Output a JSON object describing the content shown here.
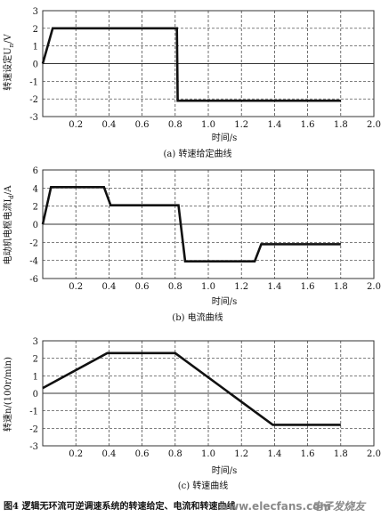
{
  "charts": [
    {
      "caption": "(a) 转速给定曲线",
      "xlabel": "时间/s",
      "ylabel": "转速设定U",
      "ylabel_sub": "n",
      "ylabel_unit": "/V",
      "x_ticks": [
        "0.2",
        "0.4",
        "0.6",
        "0.8",
        "1.0",
        "1.2",
        "1.4",
        "1.6",
        "1.8",
        "2.0"
      ],
      "y_ticks": [
        "3",
        "2",
        "1",
        "0",
        "-1",
        "-2",
        "-3"
      ]
    },
    {
      "caption": "(b) 电流曲线",
      "xlabel": "时间/s",
      "ylabel": "电动机电枢电流I",
      "ylabel_sub": "d",
      "ylabel_unit": "/A",
      "x_ticks": [
        "0.2",
        "0.4",
        "0.6",
        "0.8",
        "1.0",
        "1.2",
        "1.4",
        "1.6",
        "1.8",
        "2.0"
      ],
      "y_ticks": [
        "6",
        "4",
        "2",
        "0",
        "-2",
        "-4",
        "-6"
      ]
    },
    {
      "caption": "(c) 转速曲线",
      "xlabel": "时间/s",
      "ylabel": "转速n/(100r/min)",
      "x_ticks": [
        "0.2",
        "0.4",
        "0.6",
        "0.8",
        "1.0",
        "1.2",
        "1.4",
        "1.6",
        "1.8",
        "2.0"
      ],
      "y_ticks": [
        "3",
        "2",
        "1",
        "0",
        "-1",
        "-2",
        "-3"
      ]
    }
  ],
  "figure_caption": "图4  逻辑无环流可逆调速系统的转速给定、电流和转速曲线",
  "watermark": {
    "en": "www.elecfans.com",
    "cn": "电子发烧友"
  },
  "colors": {
    "line": "#111111",
    "grid": "#333333",
    "background": "#ffffff"
  },
  "chart_data": [
    {
      "type": "line",
      "xlim": [
        0,
        2.0
      ],
      "ylim": [
        -3,
        3
      ],
      "grid": true,
      "grid_style": "dashed",
      "x": [
        0,
        0.06,
        0.81,
        0.815,
        1.8
      ],
      "y": [
        0,
        2,
        2,
        -2.1,
        -2.1
      ]
    },
    {
      "type": "line",
      "xlim": [
        0,
        2.0
      ],
      "ylim": [
        -6,
        6
      ],
      "grid": true,
      "grid_style": "dashed",
      "x": [
        0,
        0.05,
        0.37,
        0.41,
        0.82,
        0.86,
        1.28,
        1.32,
        1.8
      ],
      "y": [
        0,
        4.1,
        4.1,
        2.1,
        2.1,
        -4.1,
        -4.1,
        -2.2,
        -2.2
      ]
    },
    {
      "type": "line",
      "xlim": [
        0,
        2.0
      ],
      "ylim": [
        -3,
        3
      ],
      "grid": true,
      "grid_style": "dashed",
      "x": [
        0,
        0.39,
        0.8,
        1.39,
        1.8
      ],
      "y": [
        0.3,
        2.3,
        2.3,
        -1.8,
        -1.8
      ]
    }
  ]
}
